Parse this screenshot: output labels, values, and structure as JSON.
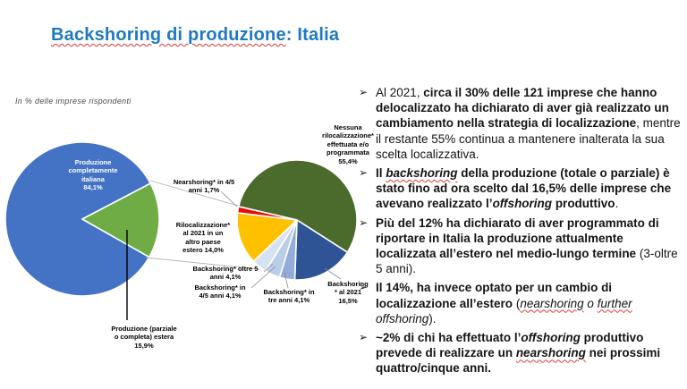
{
  "slide": {
    "title_marked": "Backshoring di produzione",
    "title_rest": ": Italia",
    "subtitle": "In % delle imprese rispondenti"
  },
  "bullet_marker": "➢",
  "colors": {
    "title_blue": "#1E7AC2",
    "left_pie_blue": "#4472C4",
    "left_pie_green": "#6FAC46",
    "right_pie_dark_green": "#4A6B2B",
    "right_pie_navy": "#2E5496",
    "right_pie_yellow": "#FFC000",
    "right_pie_red": "#E80A0A",
    "right_pie_pale_blue_1": "#93ACD9",
    "right_pie_pale_blue_2": "#BCCDE9",
    "right_pie_pale_blue_3": "#D6E2F2",
    "squiggle_red": "#e23b3b"
  },
  "chart_data": [
    {
      "type": "pie",
      "title": "",
      "legend": "none",
      "slices": [
        {
          "label": "Produzione completamente italiana",
          "value": 84.1,
          "color": "#4472C4"
        },
        {
          "label": "Produzione (parziale o completa) estera",
          "value": 15.9,
          "color": "#6FAC46"
        }
      ]
    },
    {
      "type": "pie",
      "title": "",
      "legend": "none",
      "slices": [
        {
          "label": "Nessuna rilocalizzazione* effettuata e/o programmata",
          "value": 55.4,
          "color": "#4A6B2B"
        },
        {
          "label": "Backshoring* al 2021",
          "value": 16.5,
          "color": "#2E5496"
        },
        {
          "label": "Backshoring* in tre anni",
          "value": 4.1,
          "color": "#93ACD9"
        },
        {
          "label": "Backshoring* in 4/5 anni",
          "value": 4.1,
          "color": "#BCCDE9"
        },
        {
          "label": "Backshoring* oltre 5 anni",
          "value": 4.1,
          "color": "#D6E2F2"
        },
        {
          "label": "Rilocalizzazione* al 2021 in un altro paese estero",
          "value": 14.0,
          "color": "#FFC000"
        },
        {
          "label": "Nearshoring* in 4/5 anni",
          "value": 1.7,
          "color": "#E80A0A"
        }
      ]
    }
  ],
  "pie_labels": {
    "left_main": "Produzione\ncompletamente\nitaliana\n84,1%",
    "left_estera": "Produzione (parziale\no completa) estera\n15,9%",
    "nessuna": "Nessuna\nrilocalizzazione*\neffettuata e/o\nprogrammata\n55,4%",
    "nearshoring": "Nearshoring* in 4/5\nanni 1,7%",
    "rilocalizzazione": "Rilocalizzazione*\nal 2021 in un\naltro paese\nestero 14,0%",
    "oltre5": "Backshoring* oltre 5\nanni 4,1%",
    "anni45": "Backshoring* in\n4/5 anni 4,1%",
    "treanni": "Backshoring* in\ntre anni 4,1%",
    "al2021": "Backshoring\n* al 2021\n16,5%"
  },
  "bullets": [
    {
      "segments": [
        {
          "t": "Al 2021, "
        },
        {
          "t": "circa il 30% delle 121 imprese che hanno delocalizzato ha dichiarato di aver già realizzato un cambiamento nella strategia di localizzazione",
          "b": true
        },
        {
          "t": ", mentre il restante 55% continua a mantenere inalterata la sua scelta localizzativa."
        }
      ]
    },
    {
      "segments": [
        {
          "t": "Il ",
          "b": true
        },
        {
          "t": "backshoring",
          "b": true,
          "i": true,
          "sq": true
        },
        {
          "t": " della produzione (totale o parziale) è stato fino ad ora scelto dal 16,5% delle imprese che avevano realizzato l’",
          "b": true
        },
        {
          "t": "offshoring",
          "b": true,
          "i": true
        },
        {
          "t": " produttivo",
          "b": true
        },
        {
          "t": "."
        }
      ]
    },
    {
      "segments": [
        {
          "t": "Più del 12% ha dichiarato di aver programmato di riportare in Italia la produzione attualmente localizzata all’estero nel medio-lungo termine",
          "b": true
        },
        {
          "t": " (3-oltre 5 anni)."
        }
      ]
    },
    {
      "segments": [
        {
          "t": "Il 14%, ha invece optato per un cambio di localizzazione all’estero ",
          "b": true
        },
        {
          "t": "("
        },
        {
          "t": "nearshoring",
          "i": true,
          "sq": true
        },
        {
          "t": " o ",
          "i": true
        },
        {
          "t": "further",
          "i": true,
          "sq": true
        },
        {
          "t": " ",
          "i": true
        },
        {
          "t": "offshoring",
          "i": true
        },
        {
          "t": ")."
        }
      ]
    },
    {
      "segments": [
        {
          "t": "~2% di chi ha effettuato l’",
          "b": true
        },
        {
          "t": "offshoring",
          "b": true,
          "i": true
        },
        {
          "t": " produttivo prevede di realizzare un ",
          "b": true
        },
        {
          "t": "nearshoring",
          "b": true,
          "i": true,
          "sq": true
        },
        {
          "t": " nei prossimi quattro/cinque anni.",
          "b": true
        }
      ]
    }
  ]
}
